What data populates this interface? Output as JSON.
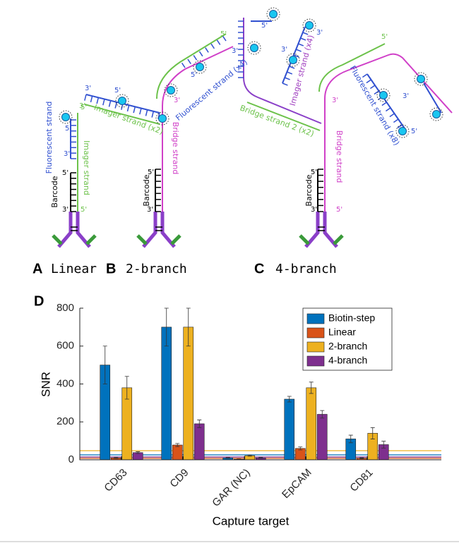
{
  "diagrams": [
    {
      "label": "A",
      "title": "Linear",
      "texts": [
        "Fluorescent strand",
        "Imager strand",
        "Barcode"
      ],
      "ends": [
        "5'",
        "3'",
        "3'",
        "5'",
        "3'",
        "5'"
      ]
    },
    {
      "label": "B",
      "title": "2-branch",
      "texts": [
        "Imager strand (x2)",
        "Fluorescent strand (x4)",
        "Bridge strand",
        "Barcode"
      ],
      "ends": [
        "3'",
        "5'",
        "5'",
        "5'",
        "3'",
        "5'",
        "3'",
        "5'",
        "3'"
      ]
    },
    {
      "label": "C",
      "title": "4-branch",
      "texts": [
        "Bridge strand 2 (x2)",
        "Imager strand (x4)",
        "Fluorescent strand (x8)",
        "Bridge strand",
        "Barcode"
      ],
      "ends": [
        "5'",
        "3'",
        "3'",
        "5'",
        "3'",
        "5'",
        "5'",
        "3'",
        "3'",
        "5'"
      ]
    }
  ],
  "chart_data": {
    "type": "bar",
    "label": "D",
    "categories": [
      "CD63",
      "CD9",
      "GAR (NC)",
      "EpCAM",
      "CD81"
    ],
    "series": [
      {
        "name": "Biotin-step",
        "color": "#0072bd",
        "values": [
          500,
          700,
          10,
          320,
          110
        ],
        "errors": [
          100,
          100,
          2,
          15,
          20
        ],
        "baseline": 26
      },
      {
        "name": "Linear",
        "color": "#d95319",
        "values": [
          10,
          78,
          3,
          60,
          8
        ],
        "errors": [
          3,
          8,
          1,
          8,
          3
        ],
        "baseline": 8
      },
      {
        "name": "2-branch",
        "color": "#edb120",
        "values": [
          380,
          700,
          22,
          380,
          140
        ],
        "errors": [
          60,
          100,
          3,
          30,
          30
        ],
        "baseline": 48
      },
      {
        "name": "4-branch",
        "color": "#7e2f8e",
        "values": [
          38,
          190,
          10,
          240,
          80
        ],
        "errors": [
          5,
          20,
          2,
          20,
          18
        ],
        "baseline": 15
      }
    ],
    "ylabel": "SNR",
    "xlabel": "Capture target",
    "ylim": [
      0,
      800
    ],
    "yticks": [
      0,
      200,
      400,
      600,
      800
    ],
    "legend": "top-right",
    "grid": false
  }
}
